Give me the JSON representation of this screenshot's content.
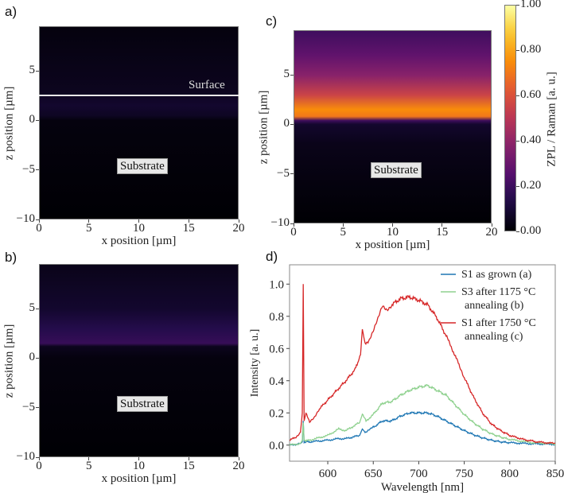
{
  "panels": {
    "a": {
      "label": "a)",
      "xlabel": "x position [µm]",
      "ylabel": "z position [µm]",
      "xticks": [
        "0",
        "5",
        "10",
        "15",
        "20"
      ],
      "yticks": [
        "5",
        "0",
        "−5",
        "−10"
      ],
      "annotations": {
        "surface": "Surface",
        "substrate": "Substrate"
      },
      "surface_z_um": 2.5
    },
    "b": {
      "label": "b)",
      "xlabel": "x position [µm]",
      "ylabel": "z position [µm]",
      "xticks": [
        "0",
        "5",
        "10",
        "15",
        "20"
      ],
      "yticks": [
        "5",
        "0",
        "−5",
        "−10"
      ],
      "annotations": {
        "substrate": "Substrate"
      }
    },
    "c": {
      "label": "c)",
      "xlabel": "x position [µm]",
      "ylabel": "z position [µm]",
      "xticks": [
        "0",
        "5",
        "10",
        "15",
        "20"
      ],
      "yticks": [
        "5",
        "0",
        "−5",
        "−10"
      ],
      "annotations": {
        "substrate": "Substrate"
      }
    },
    "colorbar": {
      "label": "ZPL / Raman [a. u.]",
      "ticks": [
        "1.00",
        "0.80",
        "0.60",
        "0.40",
        "0.20",
        "0.00"
      ],
      "range": [
        0,
        1
      ],
      "colormap": "inferno"
    },
    "d": {
      "label": "d)"
    }
  },
  "chart_data": [
    {
      "type": "heatmap",
      "panel": "a",
      "title": "",
      "xlabel": "x position [µm]",
      "ylabel": "z position [µm]",
      "xlim": [
        0,
        20
      ],
      "ylim": [
        -10,
        9.5
      ],
      "xticks": [
        0,
        5,
        10,
        15,
        20
      ],
      "yticks": [
        5,
        0,
        -5,
        -10
      ],
      "colormap": "inferno",
      "vrange": [
        0,
        1
      ],
      "z_profile": [
        [
          9.5,
          0.02
        ],
        [
          5,
          0.04
        ],
        [
          3,
          0.05
        ],
        [
          1.5,
          0.08
        ],
        [
          0.5,
          0.06
        ],
        [
          0,
          0.02
        ],
        [
          -10,
          0.0
        ]
      ],
      "annotations": [
        "Surface",
        "Substrate"
      ]
    },
    {
      "type": "heatmap",
      "panel": "b",
      "xlabel": "x position [µm]",
      "ylabel": "z position [µm]",
      "xlim": [
        0,
        20
      ],
      "ylim": [
        -10,
        9.5
      ],
      "xticks": [
        0,
        5,
        10,
        15,
        20
      ],
      "yticks": [
        5,
        0,
        -5,
        -10
      ],
      "colormap": "inferno",
      "vrange": [
        0,
        1
      ],
      "z_profile": [
        [
          9.5,
          0.04
        ],
        [
          5,
          0.08
        ],
        [
          3,
          0.14
        ],
        [
          1.5,
          0.18
        ],
        [
          1.2,
          0.05
        ],
        [
          0,
          0.02
        ],
        [
          -10,
          0.0
        ]
      ],
      "annotations": [
        "Substrate"
      ]
    },
    {
      "type": "heatmap",
      "panel": "c",
      "xlabel": "x position [µm]",
      "ylabel": "z position [µm]",
      "xlim": [
        0,
        20
      ],
      "ylim": [
        -10,
        9.5
      ],
      "xticks": [
        0,
        5,
        10,
        15,
        20
      ],
      "yticks": [
        5,
        0,
        -5,
        -10
      ],
      "colormap": "inferno",
      "vrange": [
        0,
        1
      ],
      "z_profile": [
        [
          9.5,
          0.2
        ],
        [
          7,
          0.28
        ],
        [
          5,
          0.38
        ],
        [
          3,
          0.55
        ],
        [
          1.5,
          0.75
        ],
        [
          0.8,
          0.7
        ],
        [
          0.4,
          0.2
        ],
        [
          0,
          0.08
        ],
        [
          -2,
          0.04
        ],
        [
          -10,
          0.0
        ]
      ],
      "annotations": [
        "Substrate"
      ],
      "colorbar_label": "ZPL / Raman [a. u.]",
      "colorbar_ticks": [
        "0.00",
        "0.20",
        "0.40",
        "0.60",
        "0.80",
        "1.00"
      ]
    },
    {
      "type": "line",
      "panel": "d",
      "title": "",
      "xlabel": "Wavelength [nm]",
      "ylabel": "Intensity [a. u.]",
      "xlim": [
        558,
        850
      ],
      "ylim": [
        -0.1,
        1.12
      ],
      "xticks": [
        600,
        650,
        700,
        750,
        800,
        850
      ],
      "yticks": [
        0.0,
        0.2,
        0.4,
        0.6,
        0.8,
        1.0
      ],
      "ytick_labels": [
        "0.0",
        "0.2",
        "0.4",
        "0.6",
        "0.8",
        "1.0"
      ],
      "legend": "top-right",
      "series": [
        {
          "name": "S1 as grown (a)",
          "color": "#1f77b4",
          "points": [
            [
              558,
              0.0
            ],
            [
              570,
              0.01
            ],
            [
              572,
              0.02
            ],
            [
              573,
              0.15
            ],
            [
              574,
              0.02
            ],
            [
              580,
              0.02
            ],
            [
              600,
              0.03
            ],
            [
              612,
              0.04
            ],
            [
              620,
              0.04
            ],
            [
              635,
              0.06
            ],
            [
              638,
              0.1
            ],
            [
              641,
              0.08
            ],
            [
              650,
              0.11
            ],
            [
              660,
              0.15
            ],
            [
              670,
              0.15
            ],
            [
              680,
              0.18
            ],
            [
              690,
              0.2
            ],
            [
              700,
              0.2
            ],
            [
              710,
              0.2
            ],
            [
              720,
              0.18
            ],
            [
              730,
              0.15
            ],
            [
              740,
              0.12
            ],
            [
              750,
              0.09
            ],
            [
              760,
              0.065
            ],
            [
              770,
              0.045
            ],
            [
              780,
              0.03
            ],
            [
              790,
              0.02
            ],
            [
              800,
              0.015
            ],
            [
              825,
              0.008
            ],
            [
              850,
              0.005
            ]
          ]
        },
        {
          "name": "S3 after 1175 °C annealing (b)",
          "color": "#8fd18f",
          "points": [
            [
              558,
              0.0
            ],
            [
              570,
              0.01
            ],
            [
              572,
              0.03
            ],
            [
              573,
              0.14
            ],
            [
              574,
              0.03
            ],
            [
              580,
              0.03
            ],
            [
              600,
              0.06
            ],
            [
              612,
              0.1
            ],
            [
              620,
              0.09
            ],
            [
              635,
              0.14
            ],
            [
              638,
              0.19
            ],
            [
              642,
              0.15
            ],
            [
              650,
              0.19
            ],
            [
              660,
              0.26
            ],
            [
              670,
              0.27
            ],
            [
              680,
              0.31
            ],
            [
              690,
              0.34
            ],
            [
              700,
              0.36
            ],
            [
              710,
              0.37
            ],
            [
              720,
              0.34
            ],
            [
              730,
              0.31
            ],
            [
              740,
              0.25
            ],
            [
              750,
              0.19
            ],
            [
              760,
              0.14
            ],
            [
              770,
              0.1
            ],
            [
              780,
              0.07
            ],
            [
              790,
              0.05
            ],
            [
              800,
              0.035
            ],
            [
              825,
              0.015
            ],
            [
              850,
              0.008
            ]
          ]
        },
        {
          "name": "S1 after 1750 °C annealing (c)",
          "color": "#d62728",
          "points": [
            [
              558,
              0.03
            ],
            [
              565,
              0.05
            ],
            [
              570,
              0.08
            ],
            [
              572,
              0.2
            ],
            [
              573,
              1.0
            ],
            [
              574,
              0.15
            ],
            [
              576,
              0.2
            ],
            [
              580,
              0.14
            ],
            [
              585,
              0.17
            ],
            [
              590,
              0.22
            ],
            [
              600,
              0.28
            ],
            [
              610,
              0.34
            ],
            [
              620,
              0.4
            ],
            [
              630,
              0.47
            ],
            [
              636,
              0.56
            ],
            [
              638,
              0.72
            ],
            [
              641,
              0.63
            ],
            [
              645,
              0.65
            ],
            [
              650,
              0.71
            ],
            [
              655,
              0.78
            ],
            [
              660,
              0.86
            ],
            [
              665,
              0.84
            ],
            [
              670,
              0.87
            ],
            [
              680,
              0.91
            ],
            [
              690,
              0.92
            ],
            [
              700,
              0.9
            ],
            [
              710,
              0.87
            ],
            [
              720,
              0.79
            ],
            [
              730,
              0.68
            ],
            [
              738,
              0.58
            ],
            [
              745,
              0.49
            ],
            [
              750,
              0.42
            ],
            [
              760,
              0.3
            ],
            [
              770,
              0.2
            ],
            [
              780,
              0.13
            ],
            [
              790,
              0.09
            ],
            [
              800,
              0.06
            ],
            [
              815,
              0.035
            ],
            [
              830,
              0.02
            ],
            [
              850,
              0.01
            ]
          ]
        }
      ]
    }
  ]
}
